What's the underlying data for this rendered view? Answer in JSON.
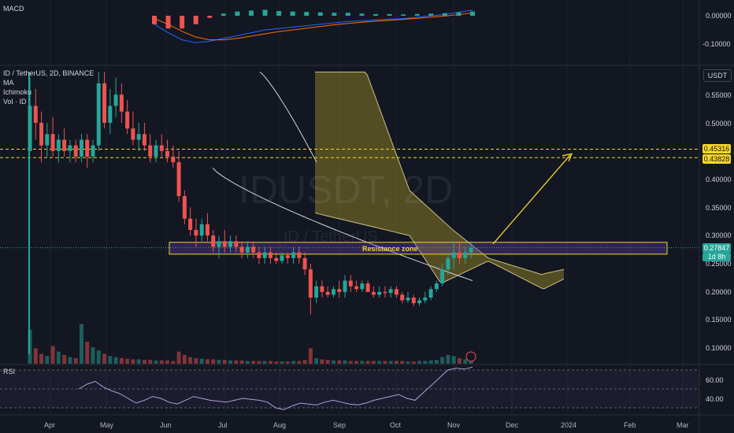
{
  "chart_data": [
    {
      "type": "candlestick",
      "title": "ID / TetherUS, 2D, BINANCE",
      "symbol_watermark": "IDUSDT, 2D",
      "pair_watermark": "ID / TetherUS",
      "currency": "USDT",
      "indicators": [
        "MA",
        "Ichimoku",
        "Vol · ID"
      ],
      "y_ticks": [
        "0.55000",
        "0.50000",
        "0.45000",
        "0.40000",
        "0.35000",
        "0.30000",
        "0.25000",
        "0.20000",
        "0.15000",
        "0.10000"
      ],
      "x_ticks": [
        "Apr",
        "May",
        "Jun",
        "Jul",
        "Aug",
        "Sep",
        "Oct",
        "Nov",
        "Dec",
        "2024",
        "Feb",
        "Mar"
      ],
      "last_price": "0.27847",
      "countdown": "1d 8h",
      "levels": [
        "0.45316",
        "0.43828"
      ],
      "resistance_label": "Resistance zone",
      "resistance_zone": [
        0.267,
        0.288
      ],
      "ylim": [
        0.08,
        0.59
      ],
      "ohlc": [
        [
          0.45,
          0.58,
          0.45,
          0.53
        ],
        [
          0.53,
          0.56,
          0.47,
          0.5
        ],
        [
          0.5,
          0.52,
          0.43,
          0.46
        ],
        [
          0.46,
          0.5,
          0.44,
          0.48
        ],
        [
          0.48,
          0.51,
          0.44,
          0.45
        ],
        [
          0.45,
          0.48,
          0.43,
          0.47
        ],
        [
          0.47,
          0.49,
          0.44,
          0.45
        ],
        [
          0.45,
          0.47,
          0.43,
          0.46
        ],
        [
          0.46,
          0.47,
          0.43,
          0.44
        ],
        [
          0.44,
          0.48,
          0.43,
          0.47
        ],
        [
          0.47,
          0.48,
          0.42,
          0.44
        ],
        [
          0.44,
          0.47,
          0.43,
          0.46
        ],
        [
          0.46,
          0.59,
          0.45,
          0.57
        ],
        [
          0.57,
          0.59,
          0.49,
          0.5
        ],
        [
          0.5,
          0.56,
          0.48,
          0.53
        ],
        [
          0.53,
          0.58,
          0.51,
          0.55
        ],
        [
          0.55,
          0.57,
          0.5,
          0.52
        ],
        [
          0.52,
          0.54,
          0.48,
          0.49
        ],
        [
          0.49,
          0.52,
          0.46,
          0.47
        ],
        [
          0.47,
          0.5,
          0.45,
          0.48
        ],
        [
          0.48,
          0.5,
          0.45,
          0.46
        ],
        [
          0.46,
          0.48,
          0.43,
          0.44
        ],
        [
          0.44,
          0.47,
          0.43,
          0.46
        ],
        [
          0.46,
          0.48,
          0.44,
          0.45
        ],
        [
          0.45,
          0.47,
          0.43,
          0.44
        ],
        [
          0.44,
          0.46,
          0.42,
          0.43
        ],
        [
          0.43,
          0.45,
          0.36,
          0.37
        ],
        [
          0.37,
          0.38,
          0.32,
          0.33
        ],
        [
          0.33,
          0.35,
          0.3,
          0.31
        ],
        [
          0.31,
          0.33,
          0.28,
          0.3
        ],
        [
          0.3,
          0.33,
          0.29,
          0.32
        ],
        [
          0.32,
          0.34,
          0.29,
          0.3
        ],
        [
          0.3,
          0.31,
          0.27,
          0.28
        ],
        [
          0.28,
          0.3,
          0.26,
          0.29
        ],
        [
          0.29,
          0.31,
          0.27,
          0.28
        ],
        [
          0.28,
          0.3,
          0.27,
          0.29
        ],
        [
          0.29,
          0.3,
          0.27,
          0.28
        ],
        [
          0.28,
          0.29,
          0.26,
          0.27
        ],
        [
          0.27,
          0.29,
          0.26,
          0.28
        ],
        [
          0.28,
          0.29,
          0.26,
          0.27
        ],
        [
          0.27,
          0.28,
          0.25,
          0.26
        ],
        [
          0.26,
          0.28,
          0.25,
          0.27
        ],
        [
          0.27,
          0.28,
          0.25,
          0.26
        ],
        [
          0.26,
          0.27,
          0.25,
          0.255
        ],
        [
          0.255,
          0.27,
          0.25,
          0.265
        ],
        [
          0.265,
          0.27,
          0.25,
          0.26
        ],
        [
          0.26,
          0.28,
          0.25,
          0.27
        ],
        [
          0.27,
          0.28,
          0.25,
          0.26
        ],
        [
          0.26,
          0.27,
          0.23,
          0.24
        ],
        [
          0.24,
          0.25,
          0.16,
          0.19
        ],
        [
          0.19,
          0.22,
          0.18,
          0.21
        ],
        [
          0.21,
          0.22,
          0.19,
          0.2
        ],
        [
          0.2,
          0.21,
          0.19,
          0.195
        ],
        [
          0.195,
          0.21,
          0.19,
          0.205
        ],
        [
          0.205,
          0.22,
          0.19,
          0.2
        ],
        [
          0.2,
          0.23,
          0.19,
          0.22
        ],
        [
          0.22,
          0.23,
          0.2,
          0.21
        ],
        [
          0.21,
          0.22,
          0.2,
          0.205
        ],
        [
          0.205,
          0.22,
          0.2,
          0.215
        ],
        [
          0.215,
          0.22,
          0.2,
          0.2
        ],
        [
          0.2,
          0.21,
          0.19,
          0.195
        ],
        [
          0.195,
          0.21,
          0.19,
          0.2
        ],
        [
          0.2,
          0.21,
          0.19,
          0.198
        ],
        [
          0.198,
          0.21,
          0.19,
          0.205
        ],
        [
          0.205,
          0.21,
          0.19,
          0.195
        ],
        [
          0.195,
          0.2,
          0.18,
          0.185
        ],
        [
          0.185,
          0.2,
          0.18,
          0.19
        ],
        [
          0.19,
          0.195,
          0.175,
          0.18
        ],
        [
          0.18,
          0.19,
          0.175,
          0.185
        ],
        [
          0.185,
          0.2,
          0.18,
          0.19
        ],
        [
          0.19,
          0.21,
          0.185,
          0.205
        ],
        [
          0.205,
          0.22,
          0.2,
          0.215
        ],
        [
          0.215,
          0.25,
          0.21,
          0.24
        ],
        [
          0.24,
          0.27,
          0.23,
          0.26
        ],
        [
          0.26,
          0.29,
          0.24,
          0.27
        ],
        [
          0.27,
          0.29,
          0.25,
          0.26
        ],
        [
          0.26,
          0.28,
          0.25,
          0.27
        ],
        [
          0.27,
          0.29,
          0.26,
          0.278
        ]
      ],
      "volume": [
        0.62,
        0.28,
        0.18,
        0.14,
        0.32,
        0.22,
        0.16,
        0.12,
        0.1,
        0.72,
        0.4,
        0.3,
        0.24,
        0.18,
        0.14,
        0.12,
        0.1,
        0.09,
        0.08,
        0.08,
        0.07,
        0.07,
        0.06,
        0.06,
        0.06,
        0.05,
        0.22,
        0.16,
        0.12,
        0.1,
        0.09,
        0.08,
        0.08,
        0.07,
        0.07,
        0.06,
        0.06,
        0.06,
        0.05,
        0.05,
        0.05,
        0.05,
        0.05,
        0.04,
        0.04,
        0.04,
        0.05,
        0.05,
        0.07,
        0.28,
        0.1,
        0.08,
        0.07,
        0.06,
        0.06,
        0.06,
        0.05,
        0.05,
        0.05,
        0.05,
        0.05,
        0.05,
        0.05,
        0.05,
        0.05,
        0.05,
        0.04,
        0.04,
        0.05,
        0.05,
        0.06,
        0.07,
        0.12,
        0.16,
        0.14,
        0.1,
        0.08,
        0.06
      ]
    },
    {
      "type": "line",
      "title": "MACD",
      "y_ticks": [
        "0.00000",
        "-0.10000"
      ],
      "series": [
        {
          "name": "MACD",
          "values": [
            -0.03,
            -0.06,
            -0.085,
            -0.095,
            -0.09,
            -0.08,
            -0.07,
            -0.06,
            -0.05,
            -0.045,
            -0.04,
            -0.035,
            -0.03,
            -0.025,
            -0.02,
            -0.018,
            -0.015,
            -0.012,
            -0.01,
            -0.005,
            0.0,
            0.005,
            0.012,
            0.02
          ]
        },
        {
          "name": "Signal",
          "values": [
            -0.01,
            -0.03,
            -0.055,
            -0.075,
            -0.085,
            -0.085,
            -0.08,
            -0.072,
            -0.064,
            -0.056,
            -0.05,
            -0.044,
            -0.038,
            -0.032,
            -0.027,
            -0.023,
            -0.019,
            -0.016,
            -0.013,
            -0.009,
            -0.005,
            -0.001,
            0.004,
            0.01
          ]
        }
      ]
    },
    {
      "type": "line",
      "title": "RSI",
      "y_ticks": [
        "60.00",
        "40.00"
      ],
      "bands": [
        70,
        50,
        30
      ],
      "values": [
        50,
        55,
        58,
        52,
        48,
        45,
        40,
        35,
        38,
        42,
        40,
        36,
        34,
        38,
        42,
        40,
        38,
        37,
        36,
        38,
        40,
        39,
        38,
        36,
        30,
        28,
        32,
        35,
        34,
        33,
        36,
        38,
        36,
        34,
        33,
        35,
        38,
        40,
        42,
        44,
        40,
        38,
        46,
        54,
        62,
        70,
        72,
        71,
        73
      ]
    }
  ]
}
